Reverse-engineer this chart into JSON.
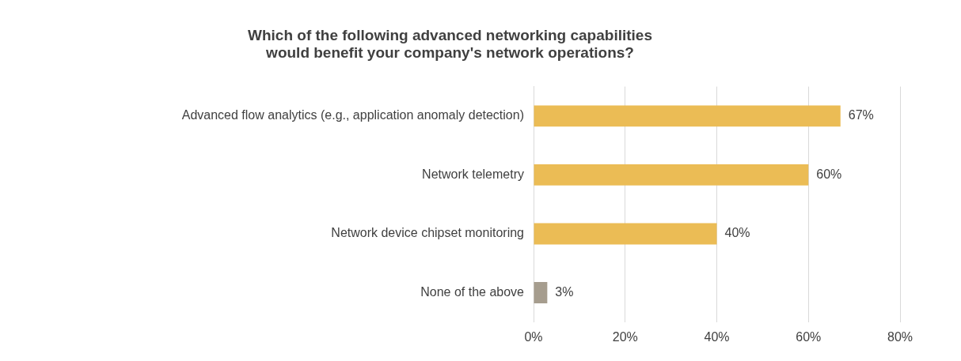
{
  "chart_data": {
    "type": "bar",
    "orientation": "horizontal",
    "title": "Which of the following advanced networking capabilities would benefit your company's network operations?",
    "categories": [
      "Advanced flow analytics (e.g., application anomaly detection)",
      "Network telemetry",
      "Network device chipset monitoring",
      "None of the above"
    ],
    "values": [
      67,
      60,
      40,
      3
    ],
    "colors": [
      "#ebbc55",
      "#ebbc55",
      "#ebbc55",
      "#a69d8e"
    ],
    "value_labels": [
      "67%",
      "60%",
      "40%",
      "3%"
    ],
    "xlim": [
      0,
      80
    ],
    "xticks": [
      {
        "value": 0,
        "label": "0%"
      },
      {
        "value": 20,
        "label": "20%"
      },
      {
        "value": 40,
        "label": "40%"
      },
      {
        "value": 60,
        "label": "60%"
      },
      {
        "value": 80,
        "label": "80%"
      }
    ],
    "grid": "x",
    "legend": false
  }
}
